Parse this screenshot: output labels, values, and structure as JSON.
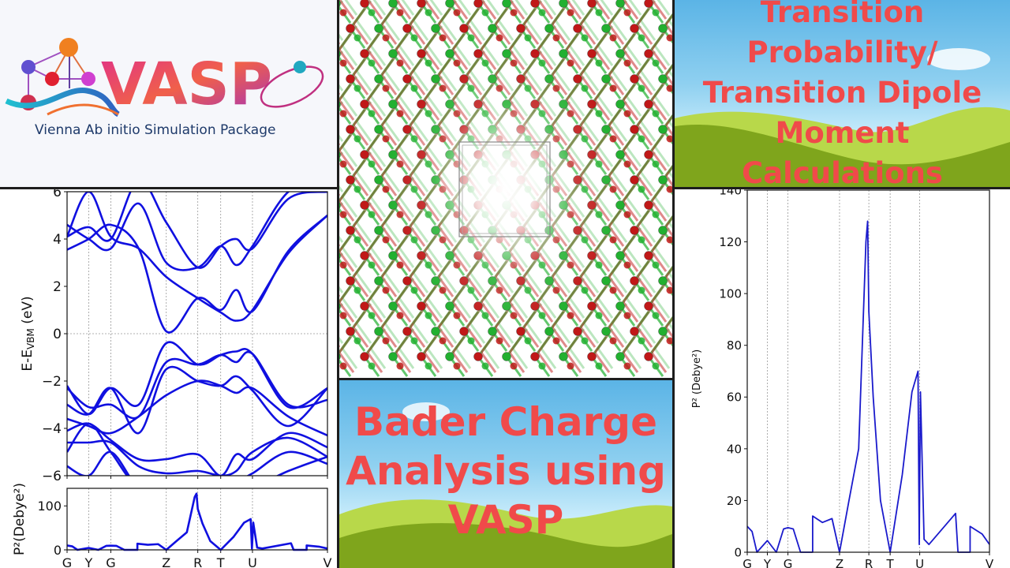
{
  "logo": {
    "wordmark": "VASP",
    "tagline": "Vienna Ab initio Simulation Package"
  },
  "bader": {
    "lines": [
      "Bader Charge",
      "Analysis using",
      "VASP"
    ]
  },
  "tdm": {
    "lines": [
      "Transition",
      "Probability/",
      "Transition Dipole",
      "Moment",
      "Calculations"
    ]
  },
  "colors": {
    "title_red": "#f04a4a",
    "band_blue": "#1010e0",
    "oxygen_red": "#c01818",
    "metal_green": "#22b030",
    "hill_green": "#7fa51c"
  },
  "chart_data": [
    {
      "type": "line",
      "ylabel_main": "E-E",
      "ylabel_sub": "VBM",
      "ylabel_unit": " (eV)",
      "ylim": [
        -6,
        6
      ],
      "yticks": [
        "-6",
        "-4",
        "-2",
        "0",
        "2",
        "4",
        "6"
      ],
      "ytick_values": [
        -6,
        -4,
        -2,
        0,
        2,
        4,
        6
      ],
      "kpath_labels": [
        "G",
        "Y",
        "G",
        "Z",
        "R",
        "T",
        "U",
        "V"
      ],
      "kpath_positions": [
        0,
        0.083,
        0.168,
        0.381,
        0.502,
        0.59,
        0.712,
        1
      ],
      "sample_positions": [
        0,
        0.083,
        0.168,
        0.275,
        0.381,
        0.502,
        0.59,
        0.65,
        0.712,
        0.85,
        1
      ],
      "grid": "vertical dashed at k-points, horizontal dashed at 0",
      "bands": [
        [
          4.1,
          6.0,
          4.1,
          3.6,
          2.4,
          1.5,
          0.9,
          0.55,
          1.0,
          3.4,
          5.0
        ],
        [
          3.55,
          4.0,
          4.6,
          3.6,
          0.1,
          1.5,
          1.0,
          1.85,
          0.95,
          3.5,
          5.0
        ],
        [
          4.6,
          4.0,
          3.6,
          5.5,
          3.0,
          2.8,
          3.7,
          2.9,
          3.7,
          6.0,
          6.5
        ],
        [
          4.1,
          4.5,
          4.0,
          6.5,
          4.7,
          2.8,
          3.7,
          4.0,
          3.6,
          5.7,
          6.0
        ],
        [
          -2.2,
          -3.4,
          -2.3,
          -3.0,
          -0.4,
          -1.3,
          -0.9,
          -0.75,
          -0.85,
          -3.1,
          -2.3
        ],
        [
          -2.3,
          -3.1,
          -3.0,
          -3.5,
          -1.2,
          -1.3,
          -0.9,
          -1.2,
          -0.85,
          -3.0,
          -2.8
        ],
        [
          -3.0,
          -3.4,
          -2.3,
          -4.2,
          -1.5,
          -2.0,
          -2.2,
          -1.8,
          -2.4,
          -3.9,
          -2.3
        ],
        [
          -3.6,
          -3.9,
          -4.2,
          -3.5,
          -2.6,
          -2.0,
          -2.2,
          -2.5,
          -2.3,
          -3.5,
          -4.3
        ],
        [
          -4.1,
          -3.8,
          -4.5,
          -5.3,
          -5.3,
          -5.1,
          -6.0,
          -5.1,
          -5.3,
          -4.2,
          -4.8
        ],
        [
          -4.6,
          -4.6,
          -4.6,
          -5.6,
          -5.9,
          -5.8,
          -6.0,
          -5.8,
          -5.0,
          -4.4,
          -5.2
        ],
        [
          -5.0,
          -3.8,
          -5.0,
          -6.5,
          -6.2,
          -6.5,
          -6.0,
          -6.2,
          -5.9,
          -5.0,
          -5.5
        ],
        [
          -5.6,
          -6.0,
          -5.0,
          -6.5,
          -6.5,
          -6.5,
          -6.5,
          -6.5,
          -6.5,
          -5.8,
          -5.2
        ]
      ]
    },
    {
      "type": "line",
      "ylabel": "P²(Debye²)",
      "ylim": [
        0,
        140
      ],
      "yticks": [
        "0",
        "100"
      ],
      "ytick_values": [
        0,
        100
      ],
      "kpath_labels": [
        "G",
        "Y",
        "G",
        "Z",
        "R",
        "T",
        "U",
        "V"
      ],
      "kpath_positions": [
        0,
        0.083,
        0.168,
        0.381,
        0.502,
        0.59,
        0.712,
        1
      ],
      "x": [
        0,
        0.02,
        0.04,
        0.083,
        0.12,
        0.15,
        0.168,
        0.19,
        0.22,
        0.27,
        0.27,
        0.31,
        0.35,
        0.381,
        0.42,
        0.46,
        0.49,
        0.497,
        0.502,
        0.52,
        0.55,
        0.59,
        0.64,
        0.68,
        0.705,
        0.71,
        0.715,
        0.73,
        0.75,
        0.86,
        0.87,
        0.92,
        0.92,
        0.97,
        1
      ],
      "y": [
        10,
        8,
        0,
        4.5,
        0,
        9,
        9.5,
        9,
        0,
        0,
        14,
        11.5,
        13,
        0,
        20,
        40,
        120,
        128,
        93,
        60,
        20,
        0,
        30,
        62,
        70,
        3,
        62,
        5,
        3,
        15,
        0,
        0,
        10,
        7,
        3
      ]
    },
    {
      "type": "line",
      "ylabel": "P² (Debye²)",
      "ylim": [
        0,
        140
      ],
      "yticks": [
        "0",
        "20",
        "40",
        "60",
        "80",
        "100",
        "120",
        "140"
      ],
      "ytick_values": [
        0,
        20,
        40,
        60,
        80,
        100,
        120,
        140
      ],
      "kpath_labels": [
        "G",
        "Y",
        "G",
        "Z",
        "R",
        "T",
        "U",
        "V"
      ],
      "kpath_positions": [
        0,
        0.083,
        0.168,
        0.381,
        0.502,
        0.59,
        0.712,
        1
      ],
      "x": [
        0,
        0.02,
        0.04,
        0.083,
        0.12,
        0.15,
        0.168,
        0.19,
        0.22,
        0.27,
        0.27,
        0.31,
        0.35,
        0.381,
        0.42,
        0.46,
        0.49,
        0.497,
        0.502,
        0.52,
        0.55,
        0.59,
        0.64,
        0.68,
        0.705,
        0.71,
        0.715,
        0.73,
        0.75,
        0.86,
        0.87,
        0.92,
        0.92,
        0.97,
        1
      ],
      "y": [
        10,
        8,
        0,
        4.5,
        0,
        9,
        9.5,
        9,
        0,
        0,
        14,
        11.5,
        13,
        0,
        20,
        40,
        120,
        128,
        93,
        60,
        20,
        0,
        30,
        62,
        70,
        3,
        62,
        5,
        3,
        15,
        0,
        0,
        10,
        7,
        3
      ]
    }
  ]
}
